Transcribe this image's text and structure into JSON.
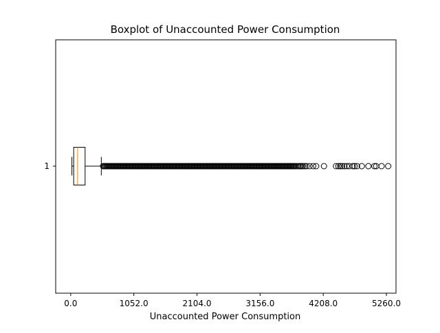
{
  "chart_data": {
    "type": "boxplot",
    "orientation": "horizontal",
    "title": "Boxplot of Unaccounted Power Consumption",
    "xlabel": "Unaccounted Power Consumption",
    "ylabel": "",
    "xlim": [
      -250,
      5420
    ],
    "xticks": [
      0.0,
      1052.0,
      2104.0,
      3156.0,
      4208.0,
      5260.0
    ],
    "xtick_labels": [
      "0.0",
      "1052.0",
      "2104.0",
      "3156.0",
      "4208.0",
      "5260.0"
    ],
    "categories": [
      "1"
    ],
    "series": [
      {
        "whisker_low": 20,
        "q1": 50,
        "median": 115,
        "q3": 240,
        "whisker_high": 510,
        "outlier_dense_range": [
          510,
          3750
        ],
        "outliers": [
          3760,
          3790,
          3810,
          3830,
          3850,
          3870,
          3900,
          3930,
          3980,
          4040,
          4090,
          4220,
          4420,
          4460,
          4490,
          4520,
          4560,
          4600,
          4640,
          4700,
          4730,
          4770,
          4850,
          4960,
          5060,
          5090,
          5180,
          5290
        ]
      }
    ],
    "colors": {
      "median": "#ff7f0e",
      "box": "#000000",
      "outlier_edge": "#000000"
    },
    "grid": false
  }
}
